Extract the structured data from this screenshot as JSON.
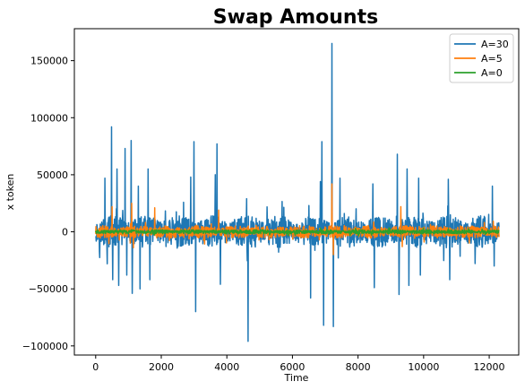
{
  "chart_data": {
    "type": "line",
    "title": "Swap Amounts",
    "xlabel": "Time",
    "ylabel": "x token",
    "xlim": [
      -650,
      12900
    ],
    "ylim": [
      -108000,
      178000
    ],
    "x_ticks": [
      0,
      2000,
      4000,
      6000,
      8000,
      10000,
      12000
    ],
    "x_tick_labels": [
      "0",
      "2000",
      "4000",
      "6000",
      "8000",
      "10000",
      "12000"
    ],
    "y_ticks": [
      -100000,
      -50000,
      0,
      50000,
      100000,
      150000
    ],
    "y_tick_labels": [
      "−100000",
      "−50000",
      "0",
      "50000",
      "100000",
      "150000"
    ],
    "grid": false,
    "legend_position": "top-right",
    "x_range": [
      0,
      12300
    ],
    "series": [
      {
        "name": "A=30",
        "color": "#1f77b4",
        "typical_amplitude": 14000,
        "max_value": 165000,
        "min_value": -96000,
        "spikes": [
          [
            280,
            47000
          ],
          [
            350,
            -28000
          ],
          [
            480,
            92000
          ],
          [
            520,
            -42000
          ],
          [
            650,
            55000
          ],
          [
            700,
            -47000
          ],
          [
            900,
            73000
          ],
          [
            950,
            -38000
          ],
          [
            1080,
            80000
          ],
          [
            1120,
            -54000
          ],
          [
            1300,
            40000
          ],
          [
            1350,
            -50000
          ],
          [
            1600,
            55000
          ],
          [
            1650,
            -42000
          ],
          [
            2900,
            48000
          ],
          [
            3000,
            79000
          ],
          [
            3050,
            -70000
          ],
          [
            3650,
            50000
          ],
          [
            3700,
            77000
          ],
          [
            3800,
            -46000
          ],
          [
            4600,
            29000
          ],
          [
            4650,
            -96000
          ],
          [
            6500,
            23000
          ],
          [
            6550,
            -58000
          ],
          [
            6850,
            44000
          ],
          [
            6900,
            79000
          ],
          [
            6950,
            -82000
          ],
          [
            7200,
            165000
          ],
          [
            7250,
            -83000
          ],
          [
            7450,
            47000
          ],
          [
            8450,
            42000
          ],
          [
            8500,
            -49000
          ],
          [
            9200,
            68000
          ],
          [
            9250,
            -55000
          ],
          [
            9500,
            55000
          ],
          [
            9550,
            -47000
          ],
          [
            9850,
            47000
          ],
          [
            9900,
            -38000
          ],
          [
            10750,
            46000
          ],
          [
            10800,
            -42000
          ],
          [
            12100,
            40000
          ],
          [
            12150,
            -30000
          ]
        ]
      },
      {
        "name": "A=5",
        "color": "#ff7f0e",
        "typical_amplitude": 5500,
        "max_value": 42000,
        "min_value": -21000,
        "spikes": [
          [
            500,
            22000
          ],
          [
            1100,
            25000
          ],
          [
            1150,
            -14000
          ],
          [
            1800,
            21000
          ],
          [
            3750,
            19000
          ],
          [
            7200,
            42000
          ],
          [
            7250,
            -20000
          ],
          [
            9300,
            22000
          ],
          [
            9350,
            -13000
          ]
        ]
      },
      {
        "name": "A=0",
        "color": "#2ca02c",
        "typical_amplitude": 1800,
        "max_value": 5000,
        "min_value": -5000,
        "spikes": []
      }
    ]
  }
}
